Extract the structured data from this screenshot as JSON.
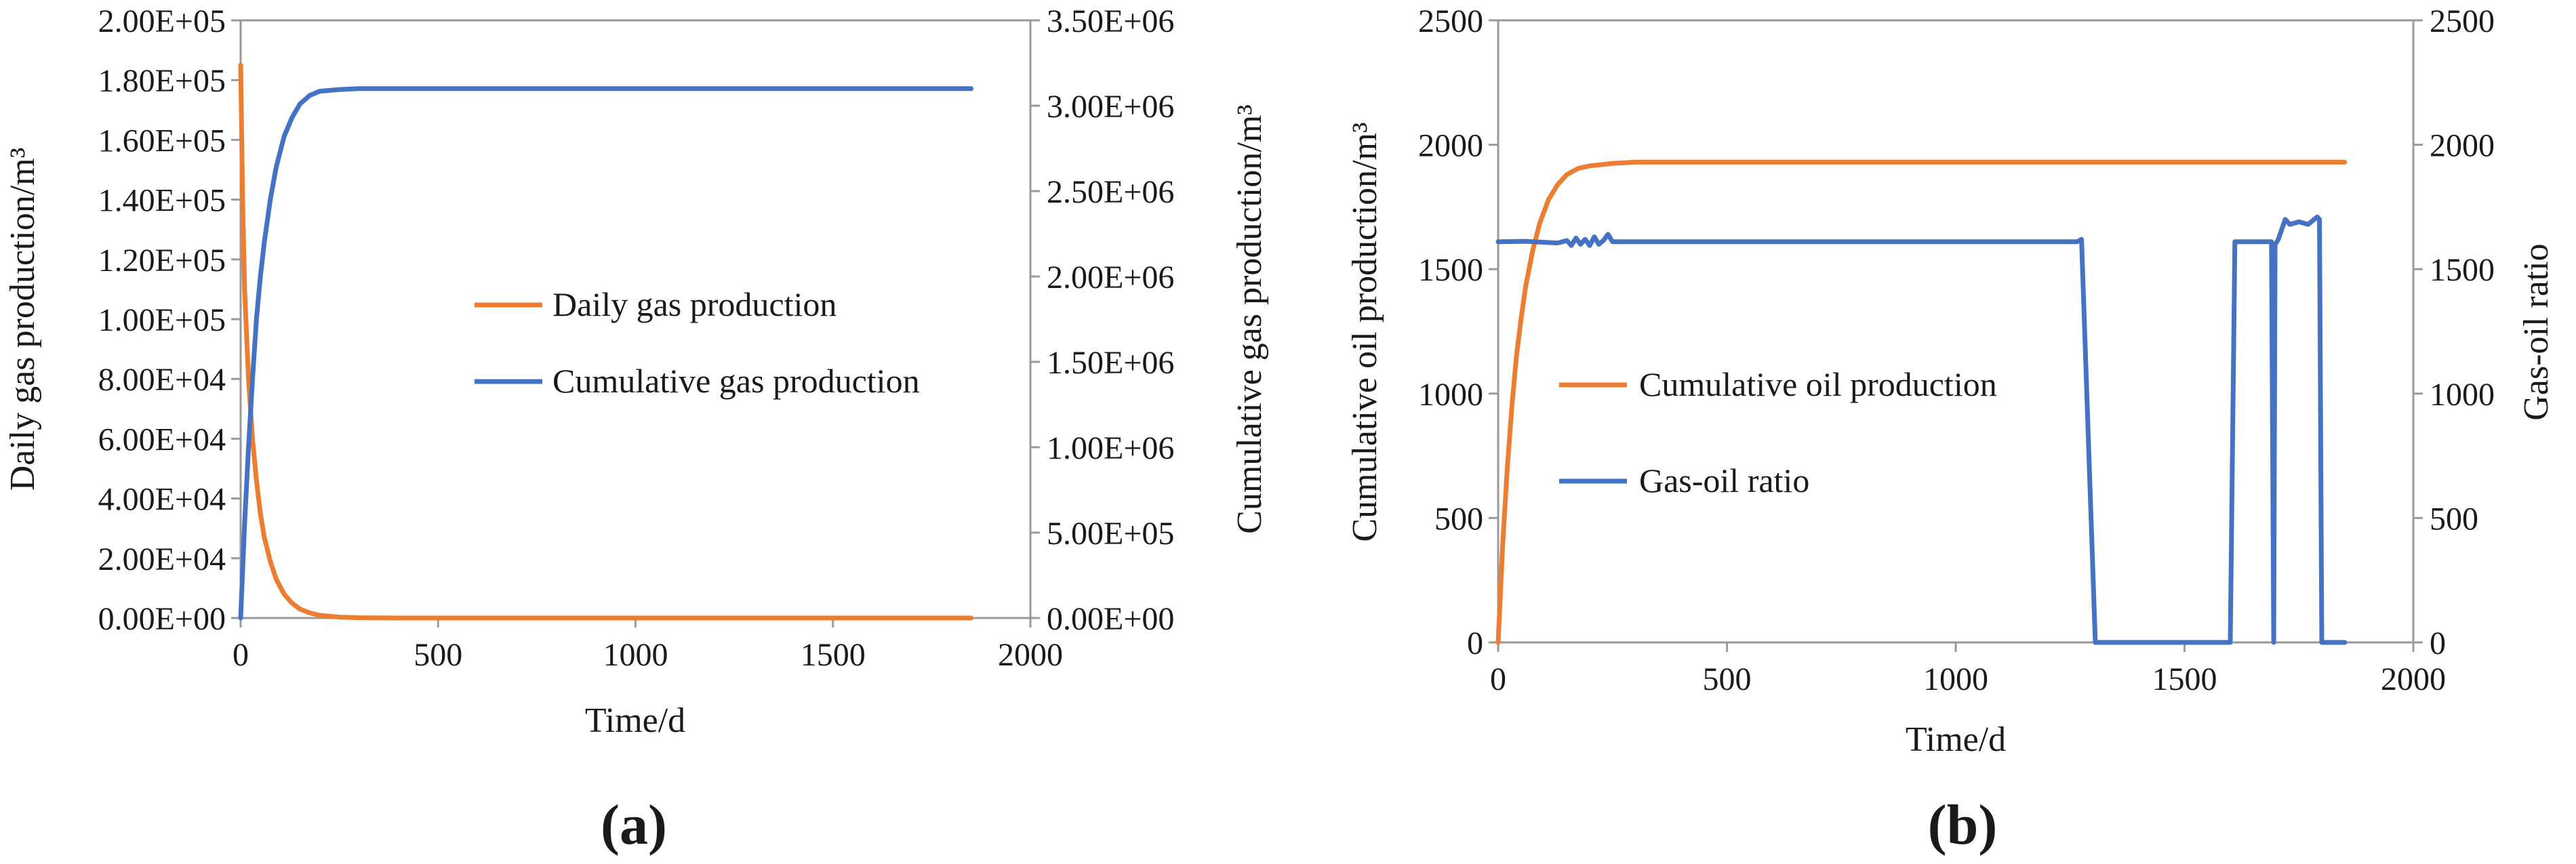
{
  "colors": {
    "orange": "#ED7D31",
    "blue": "#4472C4"
  },
  "chart_data": [
    {
      "id": "a",
      "type": "line",
      "panel_label": "(a)",
      "xlabel": "Time/d",
      "ylabel_left": "Daily gas production/m³",
      "ylabel_right": "Cumulative gas production/m³",
      "xlim": [
        0,
        2000
      ],
      "ylim_left": [
        0,
        200000
      ],
      "ylim_right": [
        0,
        3500000
      ],
      "x_ticks": [
        0,
        500,
        1000,
        1500,
        2000
      ],
      "x_tick_labels": [
        "0",
        "500",
        "1000",
        "1500",
        "2000"
      ],
      "y_left_ticks": [
        0,
        20000,
        40000,
        60000,
        80000,
        100000,
        120000,
        140000,
        160000,
        180000,
        200000
      ],
      "y_left_tick_labels": [
        "0.00E+00",
        "2.00E+04",
        "4.00E+04",
        "6.00E+04",
        "8.00E+04",
        "1.00E+05",
        "1.20E+05",
        "1.40E+05",
        "1.60E+05",
        "1.80E+05",
        "2.00E+05"
      ],
      "y_right_ticks": [
        0,
        500000,
        1000000,
        1500000,
        2000000,
        2500000,
        3000000,
        3500000
      ],
      "y_right_tick_labels": [
        "0.00E+00",
        "5.00E+05",
        "1.00E+06",
        "1.50E+06",
        "2.00E+06",
        "2.50E+06",
        "3.00E+06",
        "3.50E+06"
      ],
      "series": [
        {
          "name": "Daily gas production",
          "axis": "left",
          "color": "#ED7D31",
          "x": [
            0,
            5,
            10,
            20,
            30,
            40,
            50,
            60,
            75,
            90,
            110,
            130,
            150,
            175,
            200,
            250,
            300,
            400,
            600,
            1000,
            1500,
            1850
          ],
          "y": [
            185000,
            140000,
            110000,
            80000,
            60000,
            46000,
            35000,
            27000,
            19000,
            13000,
            8000,
            5000,
            3000,
            1700,
            900,
            300,
            100,
            0,
            0,
            0,
            0,
            0
          ]
        },
        {
          "name": "Cumulative gas production",
          "axis": "right",
          "color": "#4472C4",
          "x": [
            0,
            10,
            20,
            30,
            40,
            50,
            60,
            75,
            90,
            110,
            130,
            150,
            175,
            200,
            250,
            300,
            400,
            600,
            1000,
            1500,
            1850
          ],
          "y": [
            0,
            550000,
            1000000,
            1400000,
            1750000,
            2000000,
            2200000,
            2450000,
            2640000,
            2820000,
            2930000,
            3010000,
            3060000,
            3085000,
            3095000,
            3100000,
            3100000,
            3100000,
            3100000,
            3100000,
            3100000
          ]
        }
      ]
    },
    {
      "id": "b",
      "type": "line",
      "panel_label": "(b)",
      "xlabel": "Time/d",
      "ylabel_left": "Cumulative oil production/m³",
      "ylabel_right": "Gas-oil ratio",
      "xlim": [
        0,
        2000
      ],
      "ylim_left": [
        0,
        2500
      ],
      "ylim_right": [
        0,
        2500
      ],
      "x_ticks": [
        0,
        500,
        1000,
        1500,
        2000
      ],
      "x_tick_labels": [
        "0",
        "500",
        "1000",
        "1500",
        "2000"
      ],
      "y_left_ticks": [
        0,
        500,
        1000,
        1500,
        2000,
        2500
      ],
      "y_left_tick_labels": [
        "0",
        "500",
        "1000",
        "1500",
        "2000",
        "2500"
      ],
      "y_right_ticks": [
        0,
        500,
        1000,
        1500,
        2000,
        2500
      ],
      "y_right_tick_labels": [
        "0",
        "500",
        "1000",
        "1500",
        "2000",
        "2500"
      ],
      "series": [
        {
          "name": "Cumulative oil production",
          "axis": "left",
          "color": "#ED7D31",
          "x": [
            0,
            10,
            20,
            30,
            40,
            50,
            60,
            75,
            90,
            110,
            130,
            150,
            175,
            200,
            250,
            300,
            400,
            600,
            1000,
            1500,
            1850
          ],
          "y": [
            0,
            400,
            700,
            950,
            1150,
            1300,
            1430,
            1570,
            1680,
            1780,
            1840,
            1880,
            1905,
            1915,
            1925,
            1930,
            1930,
            1930,
            1930,
            1930,
            1930
          ]
        },
        {
          "name": "Gas-oil ratio",
          "axis": "right",
          "color": "#4472C4",
          "x": [
            0,
            60,
            100,
            130,
            150,
            160,
            170,
            180,
            190,
            200,
            210,
            220,
            230,
            240,
            250,
            400,
            800,
            1200,
            1265,
            1275,
            1305,
            1310,
            1600,
            1610,
            1690,
            1695,
            1698,
            1702,
            1705,
            1720,
            1730,
            1750,
            1770,
            1790,
            1795,
            1800,
            1805,
            1850
          ],
          "y": [
            1610,
            1612,
            1608,
            1605,
            1615,
            1595,
            1625,
            1600,
            1620,
            1595,
            1630,
            1600,
            1615,
            1640,
            1610,
            1610,
            1610,
            1610,
            1610,
            1620,
            0,
            0,
            0,
            1610,
            1610,
            0,
            1600,
            1610,
            1620,
            1700,
            1680,
            1690,
            1680,
            1710,
            1700,
            0,
            0,
            0
          ]
        }
      ]
    }
  ]
}
